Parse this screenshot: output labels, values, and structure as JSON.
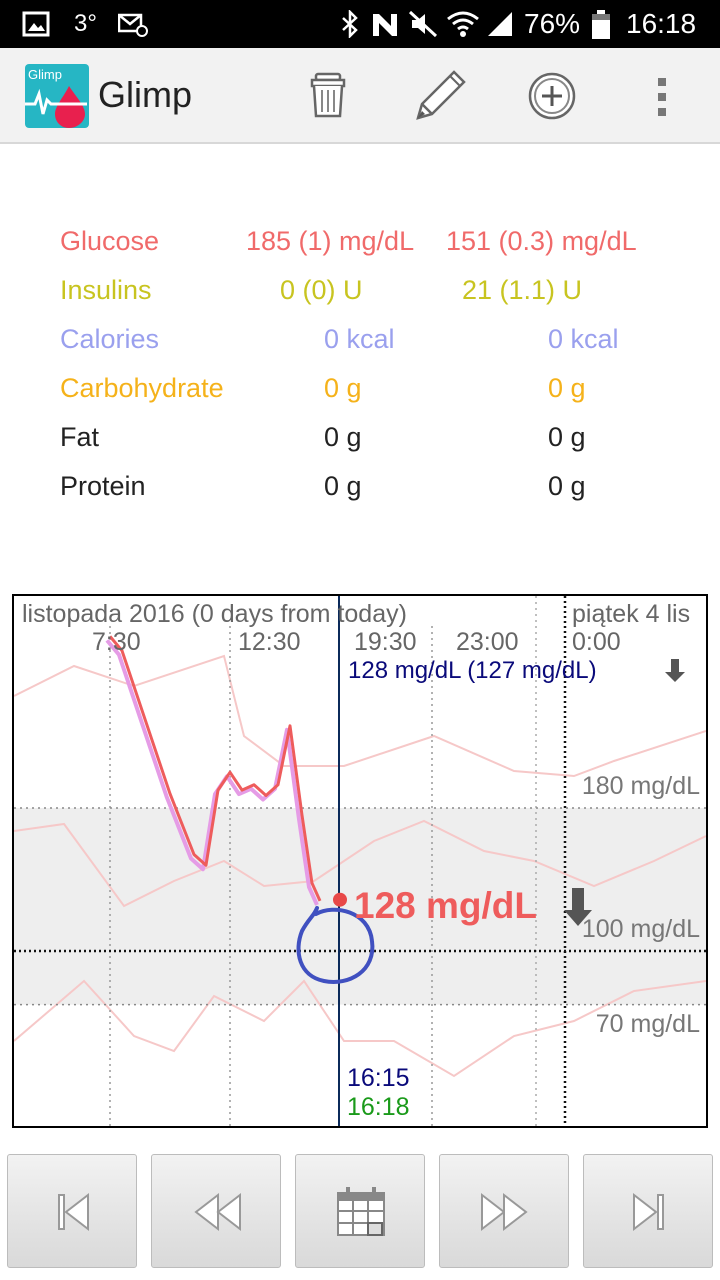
{
  "status_bar": {
    "notification_3": "3°",
    "battery_percent": "76%",
    "time": "16:18",
    "icons": [
      "gallery-icon",
      "email-icon",
      "bluetooth-icon",
      "nfc-icon",
      "mute-icon",
      "wifi-icon",
      "signal-icon",
      "battery-icon"
    ]
  },
  "app_bar": {
    "logo_text": "Glimp",
    "title": "Glimp",
    "actions": [
      "delete-icon",
      "edit-icon",
      "add-icon",
      "overflow-menu-icon"
    ]
  },
  "stats": {
    "glucose": {
      "label": "Glucose",
      "value1": "185 (1) mg/dL",
      "value2": "151 (0.3) mg/dL",
      "color": "#f06a6a"
    },
    "insulins": {
      "label": "Insulins",
      "value1": "0 (0) U",
      "value2": "21 (1.1) U",
      "color": "#c8c420"
    },
    "calories": {
      "label": "Calories",
      "value1": "0 kcal",
      "value2": "0 kcal",
      "color": "#9aa0ee"
    },
    "carbohydrate": {
      "label": "Carbohydrate",
      "value1": "0 g",
      "value2": "0 g",
      "color": "#f5b21a"
    },
    "fat": {
      "label": "Fat",
      "value1": "0 g",
      "value2": "0 g",
      "color": "#222222"
    },
    "protein": {
      "label": "Protein",
      "value1": "0 g",
      "value2": "0 g",
      "color": "#222222"
    }
  },
  "chart": {
    "header_left": "listopada 2016 (0 days from today)",
    "header_right": "piątek 4 lis",
    "time_labels": [
      "7:30",
      "12:30",
      "19:30",
      "23:00",
      "0:00"
    ],
    "current_reading_text": "128 mg/dL (127 mg/dL)",
    "big_reading": "128 mg/dL",
    "level_labels": [
      "180 mg/dL",
      "100 mg/dL",
      "70 mg/dL"
    ],
    "cursor_time": "16:15",
    "now_time": "16:18",
    "trend": "falling",
    "colors": {
      "glucose_line": "#ee5c5c",
      "cursor": "#0b2a5a",
      "cursor_time": "#0a0a7a",
      "now_time": "#1a9a1a",
      "target_band": "#eeeeee",
      "annotation": "#4050c0"
    }
  },
  "chart_data": {
    "type": "line",
    "xlabel": "",
    "ylabel": "",
    "ylim": [
      40,
      300
    ],
    "target_range": [
      70,
      180
    ],
    "series": [
      {
        "x": [
          "7:30",
          "8:00",
          "9:00",
          "10:00",
          "11:00",
          "11:30",
          "12:00",
          "12:30",
          "13:00",
          "13:30",
          "14:00",
          "14:30",
          "15:00",
          "15:30",
          "15:55",
          "16:15"
        ],
        "values": [
          276,
          268,
          228,
          188,
          154,
          148,
          190,
          200,
          190,
          193,
          187,
          193,
          226,
          176,
          138,
          128
        ]
      }
    ],
    "cursor_value": 127
  },
  "navigation": {
    "buttons": [
      "first-icon",
      "rewind-icon",
      "calendar-icon",
      "fast-forward-icon",
      "last-icon"
    ]
  }
}
